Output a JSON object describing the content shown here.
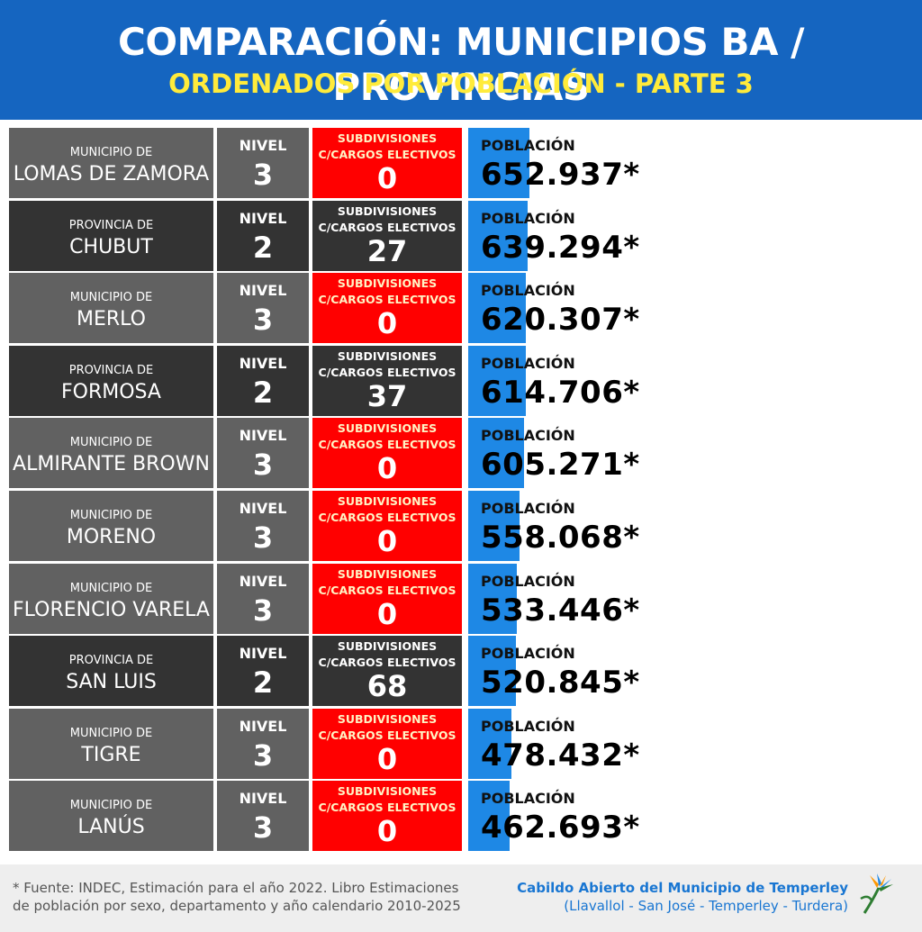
{
  "header": {
    "title": "COMPARACIÓN: MUNICIPIOS BA / PROVINCIAS",
    "subtitle": "ORDENADOS POR POBLACIÓN - PARTE 3"
  },
  "labels": {
    "nivel": "NIVEL",
    "subdivisiones": "SUBDIVISIONES",
    "cargos": "C/CARGOS ELECTIVOS",
    "poblacion": "POBLACIÓN"
  },
  "colors": {
    "header_blue": "#1565c0",
    "subtitle_yellow": "#ffeb3b",
    "municipio_gray": "#616161",
    "provincia_dark": "#333333",
    "subdivision_red": "#ff0000",
    "population_blue": "#1e88e5"
  },
  "rows": [
    {
      "kind": "MUNICIPIO DE",
      "name": "LOMAS DE ZAMORA",
      "nivel": "3",
      "subdivisiones": "0",
      "poblacion": "652.937*",
      "pop_value": 652937,
      "type": "municipio"
    },
    {
      "kind": "PROVINCIA DE",
      "name": "CHUBUT",
      "nivel": "2",
      "subdivisiones": "27",
      "poblacion": "639.294*",
      "pop_value": 639294,
      "type": "provincia"
    },
    {
      "kind": "MUNICIPIO DE",
      "name": "MERLO",
      "nivel": "3",
      "subdivisiones": "0",
      "poblacion": "620.307*",
      "pop_value": 620307,
      "type": "municipio"
    },
    {
      "kind": "PROVINCIA DE",
      "name": "FORMOSA",
      "nivel": "2",
      "subdivisiones": "37",
      "poblacion": "614.706*",
      "pop_value": 614706,
      "type": "provincia"
    },
    {
      "kind": "MUNICIPIO DE",
      "name": "ALMIRANTE BROWN",
      "nivel": "3",
      "subdivisiones": "0",
      "poblacion": "605.271*",
      "pop_value": 605271,
      "type": "municipio"
    },
    {
      "kind": "MUNICIPIO DE",
      "name": "MORENO",
      "nivel": "3",
      "subdivisiones": "0",
      "poblacion": "558.068*",
      "pop_value": 558068,
      "type": "municipio"
    },
    {
      "kind": "MUNICIPIO DE",
      "name": "FLORENCIO VARELA",
      "nivel": "3",
      "subdivisiones": "0",
      "poblacion": "533.446*",
      "pop_value": 533446,
      "type": "municipio"
    },
    {
      "kind": "PROVINCIA DE",
      "name": "SAN LUIS",
      "nivel": "2",
      "subdivisiones": "68",
      "poblacion": "520.845*",
      "pop_value": 520845,
      "type": "provincia"
    },
    {
      "kind": "MUNICIPIO DE",
      "name": "TIGRE",
      "nivel": "3",
      "subdivisiones": "0",
      "poblacion": "478.432*",
      "pop_value": 478432,
      "type": "municipio"
    },
    {
      "kind": "MUNICIPIO DE",
      "name": "LANÚS",
      "nivel": "3",
      "subdivisiones": "0",
      "poblacion": "462.693*",
      "pop_value": 462693,
      "type": "municipio"
    }
  ],
  "footer": {
    "note_line1": "* Fuente: INDEC, Estimación para el año 2022. Libro Estimaciones",
    "note_line2": "de población por sexo, departamento y año calendario 2010-2025",
    "org_name": "Cabildo Abierto del Municipio de Temperley",
    "org_areas": "(Llavallol - San José - Temperley - Turdera)",
    "logo_icon": "bird-of-paradise-flower-icon"
  }
}
